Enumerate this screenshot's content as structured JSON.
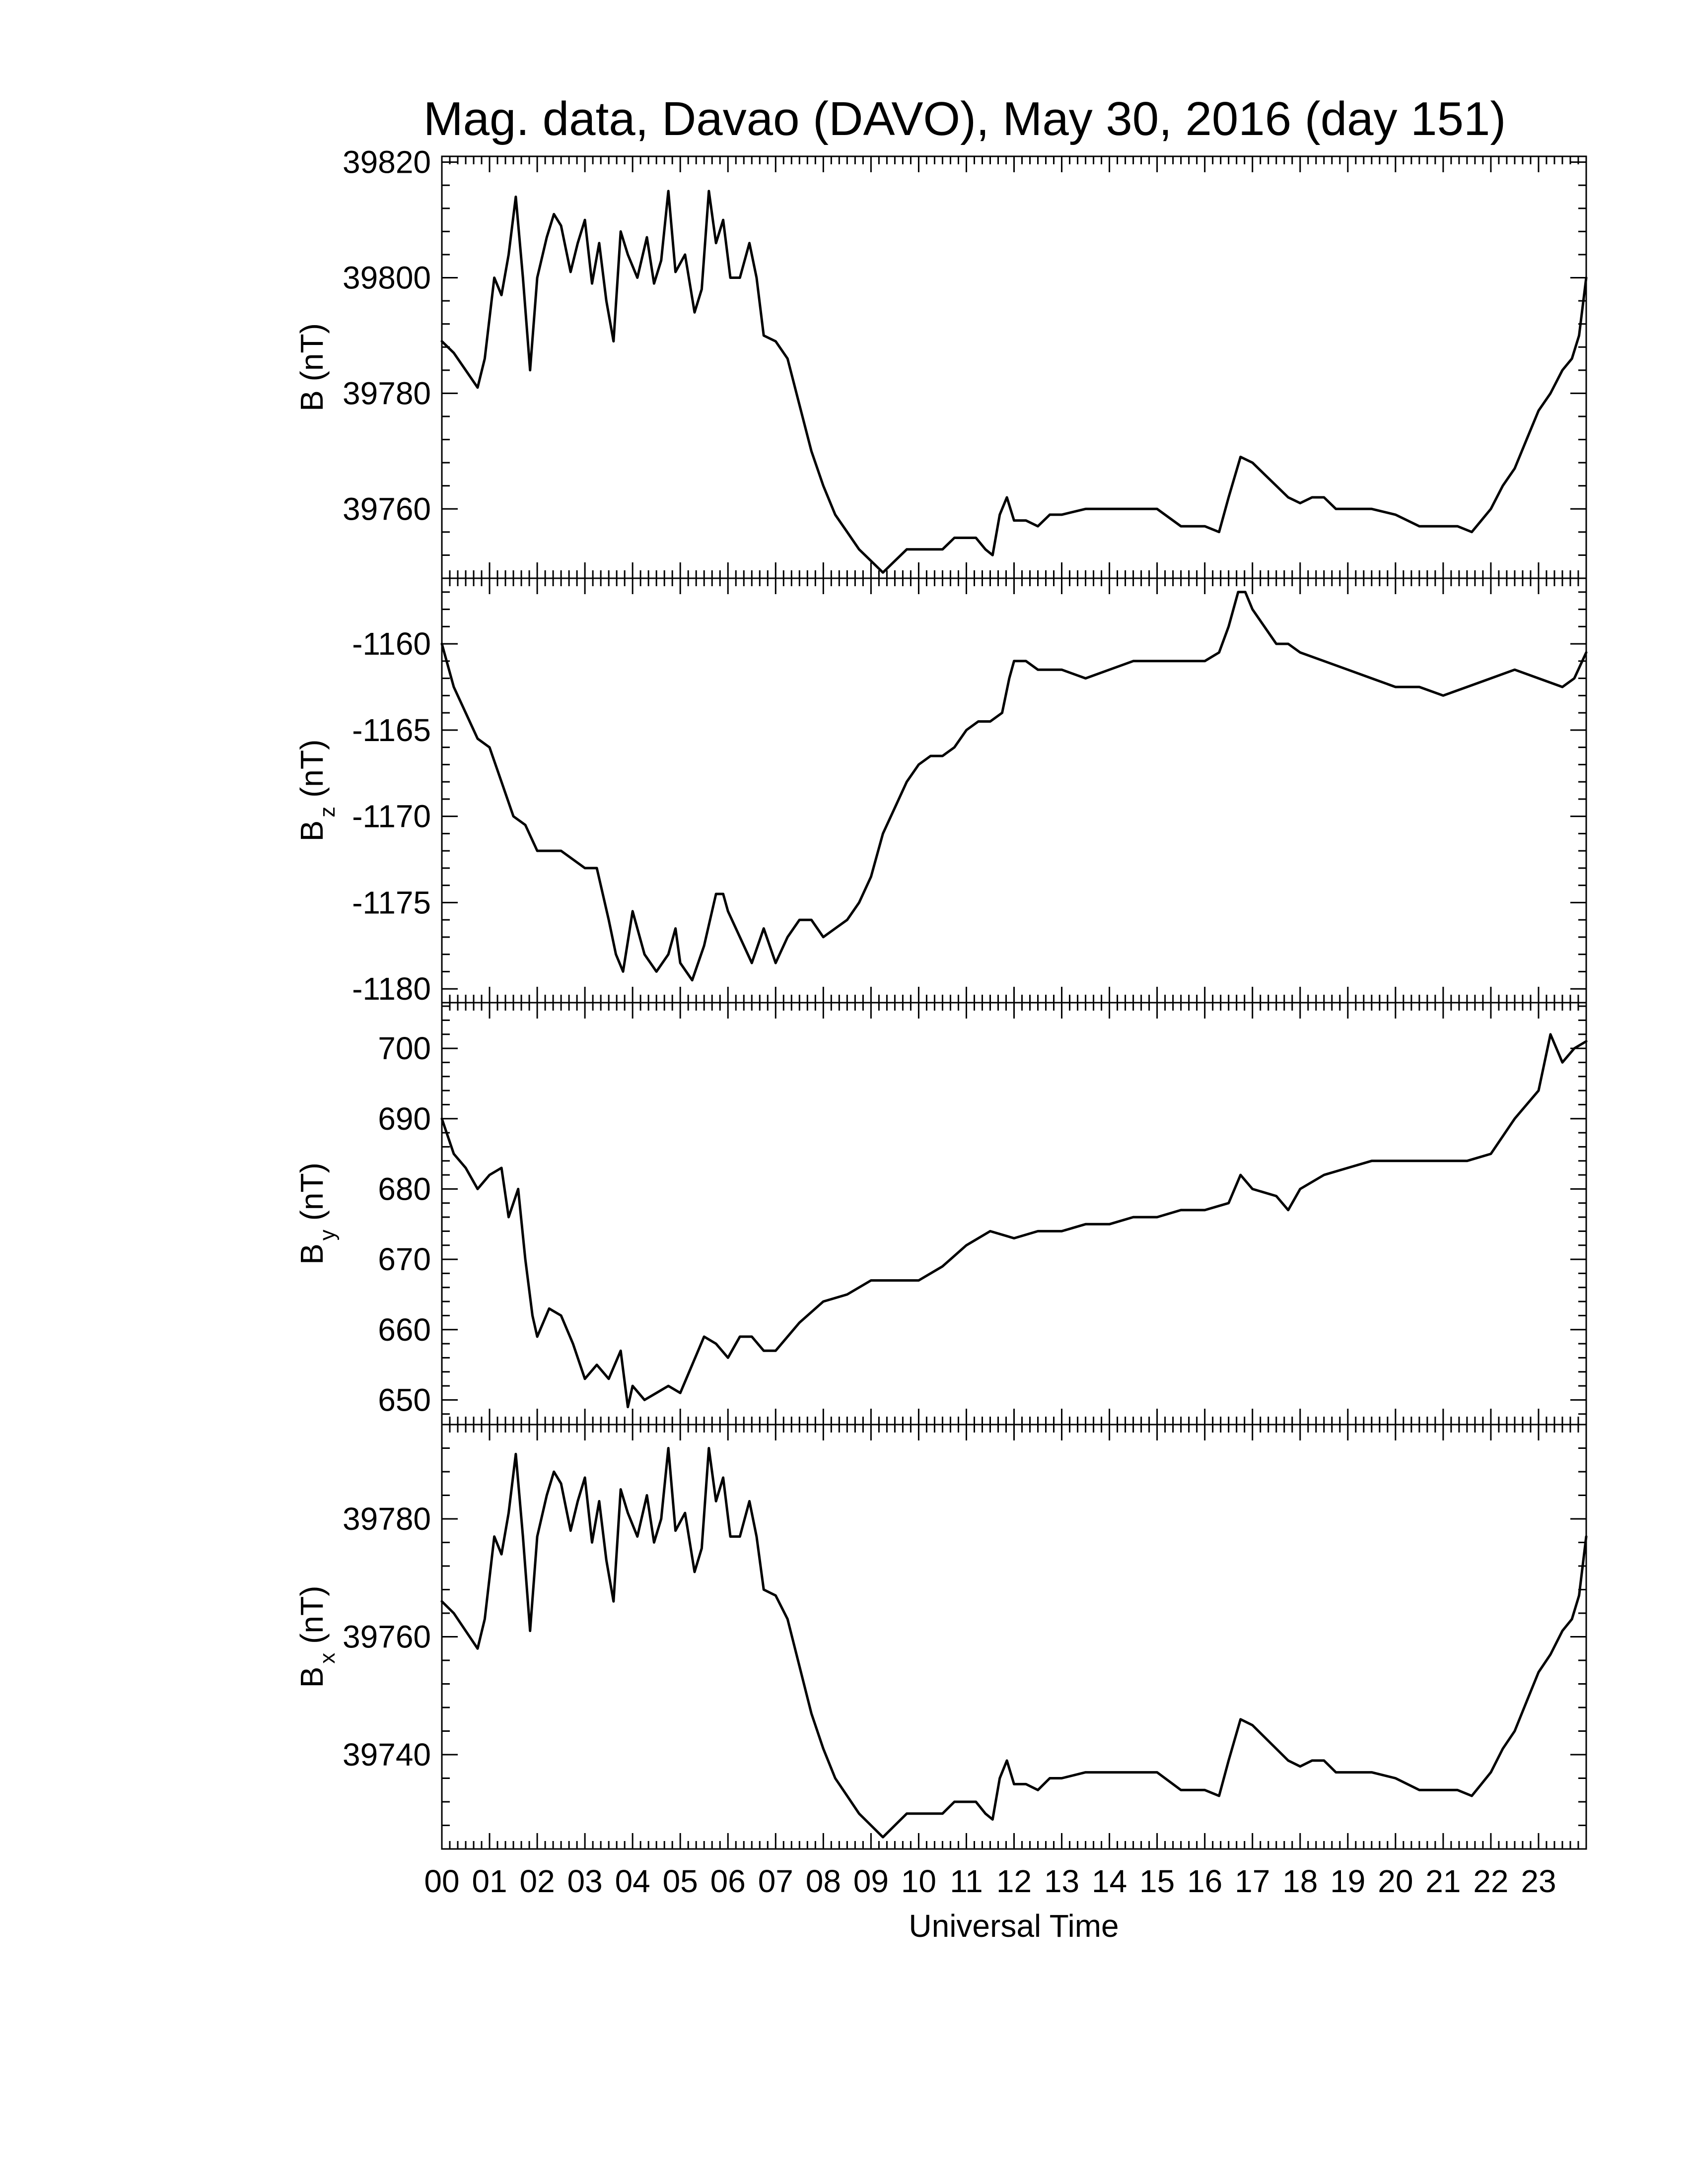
{
  "chart_data": {
    "type": "line",
    "title": "Mag. data, Davao (DAVO), May 30, 2016 (day 151)",
    "xlabel": "Universal Time",
    "xlim": [
      0,
      24
    ],
    "x_tick_labels": [
      "00",
      "01",
      "02",
      "03",
      "04",
      "05",
      "06",
      "07",
      "08",
      "09",
      "10",
      "11",
      "12",
      "13",
      "14",
      "15",
      "16",
      "17",
      "18",
      "19",
      "20",
      "21",
      "22",
      "23"
    ],
    "line_color": "#000000",
    "panels": [
      {
        "name": "B",
        "ylabel": "B (nT)",
        "ylabel_main": "B",
        "ylabel_sub": "",
        "ylabel_unit": " (nT)",
        "ylim": [
          39748,
          39821
        ],
        "yticks": [
          39760,
          39780,
          39800,
          39820
        ],
        "ytick_labels": [
          "39760",
          "39780",
          "39800",
          "39820"
        ],
        "x": [
          0,
          0.25,
          0.5,
          0.75,
          0.9,
          1.1,
          1.25,
          1.4,
          1.55,
          1.7,
          1.85,
          2.0,
          2.2,
          2.35,
          2.5,
          2.7,
          2.85,
          3.0,
          3.15,
          3.3,
          3.45,
          3.6,
          3.75,
          3.9,
          4.1,
          4.3,
          4.45,
          4.6,
          4.75,
          4.9,
          5.1,
          5.3,
          5.45,
          5.6,
          5.75,
          5.9,
          6.05,
          6.25,
          6.45,
          6.6,
          6.75,
          7.0,
          7.25,
          7.5,
          7.75,
          8.0,
          8.25,
          8.5,
          8.75,
          9.0,
          9.25,
          9.5,
          9.75,
          10.0,
          10.25,
          10.5,
          10.75,
          11.0,
          11.2,
          11.4,
          11.55,
          11.7,
          11.85,
          12.0,
          12.25,
          12.5,
          12.75,
          13.0,
          13.5,
          14.0,
          14.5,
          15.0,
          15.5,
          16.0,
          16.3,
          16.5,
          16.75,
          17.0,
          17.25,
          17.5,
          17.75,
          18.0,
          18.25,
          18.5,
          18.75,
          19.0,
          19.5,
          20.0,
          20.5,
          21.0,
          21.3,
          21.6,
          21.8,
          22.0,
          22.25,
          22.5,
          22.75,
          23.0,
          23.25,
          23.5,
          23.7,
          23.85,
          24.0
        ],
        "y": [
          39789,
          39787,
          39784,
          39781,
          39786,
          39800,
          39797,
          39804,
          39814,
          39800,
          39784,
          39800,
          39807,
          39811,
          39809,
          39801,
          39806,
          39810,
          39799,
          39806,
          39796,
          39789,
          39808,
          39804,
          39800,
          39807,
          39799,
          39803,
          39815,
          39801,
          39804,
          39794,
          39798,
          39815,
          39806,
          39810,
          39800,
          39800,
          39806,
          39800,
          39790,
          39789,
          39786,
          39778,
          39770,
          39764,
          39759,
          39756,
          39753,
          39751,
          39749,
          39751,
          39753,
          39753,
          39753,
          39753,
          39755,
          39755,
          39755,
          39753,
          39752,
          39759,
          39762,
          39758,
          39758,
          39757,
          39759,
          39759,
          39760,
          39760,
          39760,
          39760,
          39757,
          39757,
          39756,
          39762,
          39769,
          39768,
          39766,
          39764,
          39762,
          39761,
          39762,
          39762,
          39760,
          39760,
          39760,
          39759,
          39757,
          39757,
          39757,
          39756,
          39758,
          39760,
          39764,
          39767,
          39772,
          39777,
          39780,
          39784,
          39786,
          39790,
          39800
        ]
      },
      {
        "name": "Bz",
        "ylabel": "Bz (nT)",
        "ylabel_main": "B",
        "ylabel_sub": "z",
        "ylabel_unit": " (nT)",
        "ylim": [
          -1180.8,
          -1156.2
        ],
        "yticks": [
          -1180,
          -1175,
          -1170,
          -1165,
          -1160
        ],
        "ytick_labels": [
          "-1180",
          "-1175",
          "-1170",
          "-1165",
          "-1160"
        ],
        "x": [
          0,
          0.25,
          0.5,
          0.75,
          1.0,
          1.25,
          1.5,
          1.75,
          2.0,
          2.25,
          2.5,
          2.75,
          3.0,
          3.25,
          3.5,
          3.65,
          3.8,
          4.0,
          4.25,
          4.5,
          4.75,
          4.9,
          5.0,
          5.25,
          5.5,
          5.75,
          5.9,
          6.0,
          6.25,
          6.5,
          6.75,
          7.0,
          7.25,
          7.5,
          7.75,
          8.0,
          8.25,
          8.5,
          8.75,
          9.0,
          9.25,
          9.5,
          9.75,
          10.0,
          10.25,
          10.5,
          10.75,
          11.0,
          11.25,
          11.5,
          11.75,
          11.9,
          12.0,
          12.25,
          12.5,
          13.0,
          13.5,
          14.0,
          14.5,
          15.0,
          15.5,
          16.0,
          16.3,
          16.5,
          16.7,
          16.85,
          17.0,
          17.25,
          17.5,
          17.75,
          18.0,
          18.5,
          19.0,
          19.5,
          20.0,
          20.5,
          21.0,
          21.5,
          22.0,
          22.5,
          23.0,
          23.5,
          23.75,
          24.0
        ],
        "y": [
          -1160,
          -1162.5,
          -1164,
          -1165.5,
          -1166,
          -1168,
          -1170,
          -1170.5,
          -1172,
          -1172,
          -1172,
          -1172.5,
          -1173,
          -1173,
          -1176,
          -1178,
          -1179,
          -1175.5,
          -1178,
          -1179,
          -1178,
          -1176.5,
          -1178.5,
          -1179.5,
          -1177.5,
          -1174.5,
          -1174.5,
          -1175.5,
          -1177,
          -1178.5,
          -1176.5,
          -1178.5,
          -1177,
          -1176,
          -1176,
          -1177,
          -1176.5,
          -1176,
          -1175,
          -1173.5,
          -1171,
          -1169.5,
          -1168,
          -1167,
          -1166.5,
          -1166.5,
          -1166,
          -1165,
          -1164.5,
          -1164.5,
          -1164,
          -1162,
          -1161,
          -1161,
          -1161.5,
          -1161.5,
          -1162,
          -1161.5,
          -1161,
          -1161,
          -1161,
          -1161,
          -1160.5,
          -1159,
          -1157,
          -1157,
          -1158,
          -1159,
          -1160,
          -1160,
          -1160.5,
          -1161,
          -1161.5,
          -1162,
          -1162.5,
          -1162.5,
          -1163,
          -1162.5,
          -1162,
          -1161.5,
          -1162,
          -1162.5,
          -1162,
          -1160.5
        ]
      },
      {
        "name": "By",
        "ylabel": "By (nT)",
        "ylabel_main": "B",
        "ylabel_sub": "y",
        "ylabel_unit": " (nT)",
        "ylim": [
          646.5,
          706.5
        ],
        "yticks": [
          650,
          660,
          670,
          680,
          690,
          700
        ],
        "ytick_labels": [
          "650",
          "660",
          "670",
          "680",
          "690",
          "700"
        ],
        "x": [
          0,
          0.25,
          0.5,
          0.75,
          1.0,
          1.25,
          1.4,
          1.6,
          1.75,
          1.9,
          2.0,
          2.25,
          2.5,
          2.75,
          3.0,
          3.25,
          3.5,
          3.75,
          3.9,
          4.0,
          4.25,
          4.5,
          4.75,
          5.0,
          5.25,
          5.5,
          5.75,
          6.0,
          6.25,
          6.5,
          6.75,
          7.0,
          7.5,
          8.0,
          8.5,
          9.0,
          9.5,
          10.0,
          10.5,
          11.0,
          11.5,
          12.0,
          12.5,
          13.0,
          13.5,
          14.0,
          14.5,
          15.0,
          15.5,
          16.0,
          16.5,
          16.75,
          17.0,
          17.5,
          17.75,
          18.0,
          18.5,
          19.0,
          19.5,
          20.0,
          20.5,
          21.0,
          21.5,
          22.0,
          22.5,
          23.0,
          23.25,
          23.5,
          23.75,
          24.0
        ],
        "y": [
          690,
          685,
          683,
          680,
          682,
          683,
          676,
          680,
          670,
          662,
          659,
          663,
          662,
          658,
          653,
          655,
          653,
          657,
          649,
          652,
          650,
          651,
          652,
          651,
          655,
          659,
          658,
          656,
          659,
          659,
          657,
          657,
          661,
          664,
          665,
          667,
          667,
          667,
          669,
          672,
          674,
          673,
          674,
          674,
          675,
          675,
          676,
          676,
          677,
          677,
          678,
          682,
          680,
          679,
          677,
          680,
          682,
          683,
          684,
          684,
          684,
          684,
          684,
          685,
          690,
          694,
          702,
          698,
          700,
          701
        ]
      },
      {
        "name": "Bx",
        "ylabel": "Bx (nT)",
        "ylabel_main": "B",
        "ylabel_sub": "x",
        "ylabel_unit": " (nT)",
        "ylim": [
          39724,
          39796
        ],
        "yticks": [
          39740,
          39760,
          39780
        ],
        "ytick_labels": [
          "39740",
          "39760",
          "39780"
        ],
        "x": [
          0,
          0.25,
          0.5,
          0.75,
          0.9,
          1.1,
          1.25,
          1.4,
          1.55,
          1.7,
          1.85,
          2.0,
          2.2,
          2.35,
          2.5,
          2.7,
          2.85,
          3.0,
          3.15,
          3.3,
          3.45,
          3.6,
          3.75,
          3.9,
          4.1,
          4.3,
          4.45,
          4.6,
          4.75,
          4.9,
          5.1,
          5.3,
          5.45,
          5.6,
          5.75,
          5.9,
          6.05,
          6.25,
          6.45,
          6.6,
          6.75,
          7.0,
          7.25,
          7.5,
          7.75,
          8.0,
          8.25,
          8.5,
          8.75,
          9.0,
          9.25,
          9.5,
          9.75,
          10.0,
          10.25,
          10.5,
          10.75,
          11.0,
          11.2,
          11.4,
          11.55,
          11.7,
          11.85,
          12.0,
          12.25,
          12.5,
          12.75,
          13.0,
          13.5,
          14.0,
          14.5,
          15.0,
          15.5,
          16.0,
          16.3,
          16.5,
          16.75,
          17.0,
          17.25,
          17.5,
          17.75,
          18.0,
          18.25,
          18.5,
          18.75,
          19.0,
          19.5,
          20.0,
          20.5,
          21.0,
          21.3,
          21.6,
          21.8,
          22.0,
          22.25,
          22.5,
          22.75,
          23.0,
          23.25,
          23.5,
          23.7,
          23.85,
          24.0
        ],
        "y": [
          39766,
          39764,
          39761,
          39758,
          39763,
          39777,
          39774,
          39781,
          39791,
          39777,
          39761,
          39777,
          39784,
          39788,
          39786,
          39778,
          39783,
          39787,
          39776,
          39783,
          39773,
          39766,
          39785,
          39781,
          39777,
          39784,
          39776,
          39780,
          39792,
          39778,
          39781,
          39771,
          39775,
          39792,
          39783,
          39787,
          39777,
          39777,
          39783,
          39777,
          39768,
          39767,
          39763,
          39755,
          39747,
          39741,
          39736,
          39733,
          39730,
          39728,
          39726,
          39728,
          39730,
          39730,
          39730,
          39730,
          39732,
          39732,
          39732,
          39730,
          39729,
          39736,
          39739,
          39735,
          39735,
          39734,
          39736,
          39736,
          39737,
          39737,
          39737,
          39737,
          39734,
          39734,
          39733,
          39739,
          39746,
          39745,
          39743,
          39741,
          39739,
          39738,
          39739,
          39739,
          39737,
          39737,
          39737,
          39736,
          39734,
          39734,
          39734,
          39733,
          39735,
          39737,
          39741,
          39744,
          39749,
          39754,
          39757,
          39761,
          39763,
          39767,
          39777
        ]
      }
    ]
  }
}
